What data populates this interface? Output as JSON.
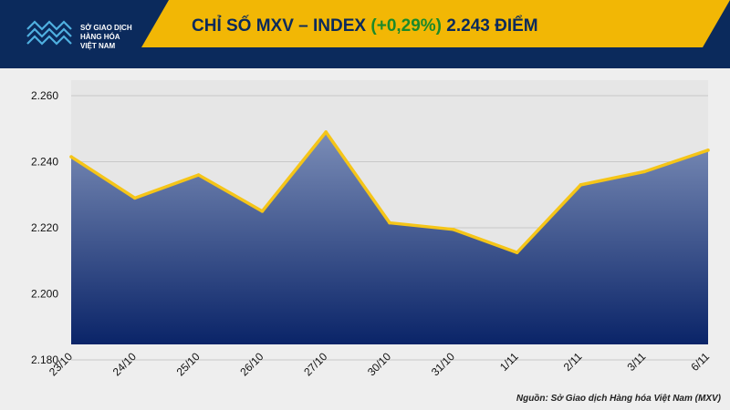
{
  "header": {
    "logo_lines": [
      "SỞ GIAO DỊCH",
      "HÀNG HÓA",
      "VIỆT NAM"
    ],
    "title_prefix": "CHỈ SỐ MXV – INDEX",
    "title_change": "(+0,29%)",
    "title_value": "2.243 ĐIỂM"
  },
  "colors": {
    "banner": "#f2b705",
    "header_bg": "#0b2a5c",
    "line": "#f5c518",
    "change": "#1b8a2a",
    "area_top": "#7b8db7",
    "area_bottom": "#0a2468"
  },
  "chart_data": {
    "type": "area",
    "categories": [
      "23/10",
      "24/10",
      "25/10",
      "26/10",
      "27/10",
      "30/10",
      "31/10",
      "1/11",
      "2/11",
      "3/11",
      "6/11"
    ],
    "values": [
      2241.5,
      2229,
      2236,
      2225,
      2249,
      2221.5,
      2219.5,
      2212.5,
      2233,
      2237,
      2243.5
    ],
    "ylim": [
      2180,
      2260
    ],
    "yticks": [
      2180,
      2200,
      2220,
      2240,
      2260
    ],
    "ytick_labels": [
      "2.180",
      "2.200",
      "2.220",
      "2.240",
      "2.260"
    ],
    "grid": true
  },
  "footer": {
    "source": "Nguồn: Sở Giao dịch Hàng hóa Việt Nam (MXV)"
  }
}
